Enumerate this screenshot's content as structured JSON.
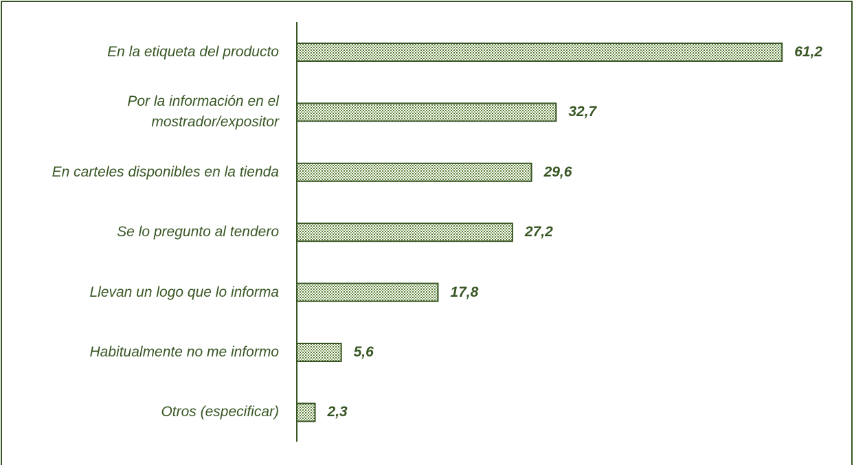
{
  "chart_data": {
    "type": "barh",
    "categories": [
      "En la etiqueta del producto",
      "Por la información en el mostrador/expositor",
      "En carteles disponibles en la tienda",
      "Se lo pregunto al tendero",
      "Llevan un logo que lo informa",
      "Habitualmente no me informo",
      "Otros (especificar)"
    ],
    "values": [
      61.2,
      32.7,
      29.6,
      27.2,
      17.8,
      5.6,
      2.3
    ],
    "value_labels": [
      "61,2",
      "32,7",
      "29,6",
      "27,2",
      "17,8",
      "5,6",
      "2,3"
    ],
    "color": "#375623"
  }
}
